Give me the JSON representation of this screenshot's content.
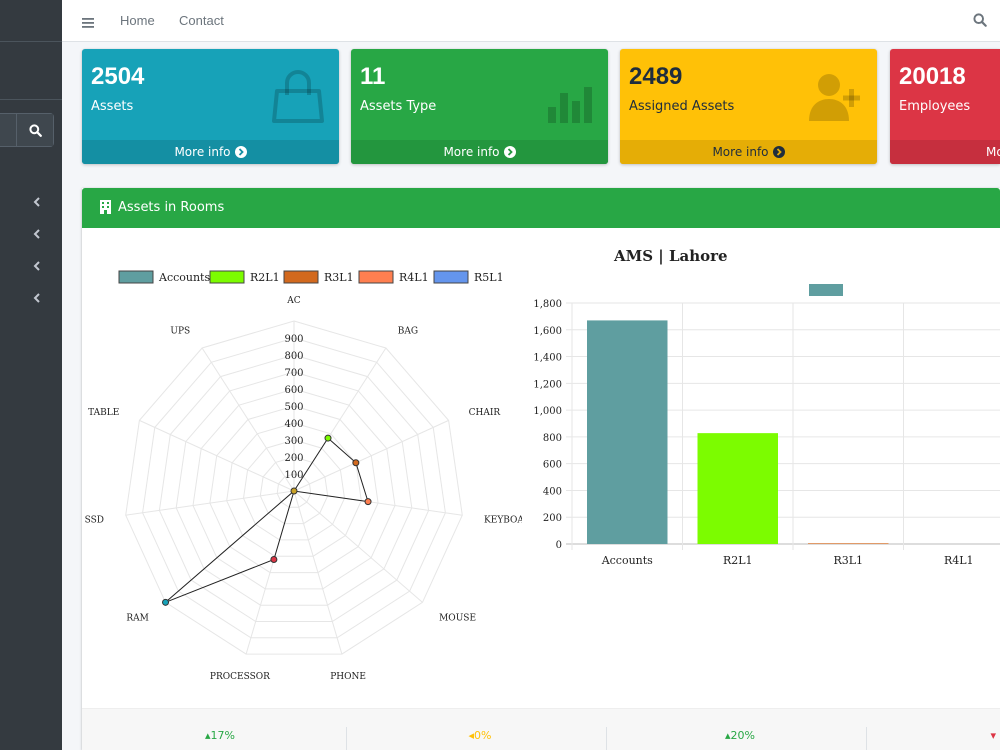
{
  "navbar": {
    "links": [
      "Home",
      "Contact"
    ]
  },
  "boxes": [
    {
      "value": "2504",
      "label": "Assets",
      "footer": "More info",
      "color": "#17a2b8",
      "footer_color": "#148fa3",
      "icon": "shopping-bag-icon"
    },
    {
      "value": "11",
      "label": "Assets Type",
      "footer": "More info",
      "color": "#28a745",
      "footer_color": "#23963e",
      "icon": "bar-chart-icon"
    },
    {
      "value": "2489",
      "label": "Assigned Assets",
      "footer": "More info",
      "color": "#ffc107",
      "footer_color": "#e5ad06",
      "icon": "user-plus-icon"
    },
    {
      "value": "20018",
      "label": "Employees",
      "footer": "Mo",
      "color": "#dc3545",
      "footer_color": "#c62f3e",
      "icon": "users-icon"
    }
  ],
  "card": {
    "title": "Assets in Rooms",
    "header_color": "#28a745",
    "icon": "building-icon"
  },
  "footer_stats": [
    {
      "pct": "17%",
      "direction": "up",
      "color": "#28a745"
    },
    {
      "pct": "0%",
      "direction": "left",
      "color": "#ffc107"
    },
    {
      "pct": "20%",
      "direction": "up",
      "color": "#28a745"
    },
    {
      "pct": "",
      "direction": "down",
      "color": "#dc3545"
    }
  ],
  "chart_data": [
    {
      "type": "radar",
      "legend": [
        {
          "name": "Accounts",
          "color": "#5f9ea0"
        },
        {
          "name": "R2L1",
          "color": "#7cfc00"
        },
        {
          "name": "R3L1",
          "color": "#d2691e"
        },
        {
          "name": "R4L1",
          "color": "#ff7f50"
        },
        {
          "name": "R5L1",
          "color": "#6495ed"
        }
      ],
      "axes": [
        "AC",
        "BAG",
        "CHAIR",
        "KEYBOARD",
        "MOUSE",
        "PHONE",
        "PROCESSOR",
        "RAM",
        "SSD",
        "TABLE",
        "UPS"
      ],
      "ticks": [
        "100",
        "200",
        "300",
        "400",
        "500",
        "600",
        "700",
        "800",
        "900"
      ],
      "rmax": 1000,
      "points": [
        {
          "axis": 0,
          "value": 0
        },
        {
          "axis": 1,
          "value": 370,
          "color": "#7cfc00"
        },
        {
          "axis": 2,
          "value": 400,
          "color": "#d2691e"
        },
        {
          "axis": 3,
          "value": 440,
          "color": "#ff7f50"
        },
        {
          "axis": 4,
          "value": 0
        },
        {
          "axis": 5,
          "value": 0
        },
        {
          "axis": 6,
          "value": 420,
          "color": "#dc3545"
        },
        {
          "axis": 7,
          "value": 1000,
          "color": "#17a2b8"
        },
        {
          "axis": 8,
          "value": 0
        },
        {
          "axis": 9,
          "value": 0
        },
        {
          "axis": 10,
          "value": 0
        }
      ]
    },
    {
      "type": "bar",
      "title": "AMS | Lahore",
      "categories": [
        "Accounts",
        "R2L1",
        "R3L1",
        "R4L1"
      ],
      "values": [
        1670,
        828,
        5,
        0
      ],
      "colors": [
        "#5f9ea0",
        "#7cfc00",
        "#d2691e",
        "#ff7f50"
      ],
      "legend_color": "#5f9ea0",
      "ylim": [
        0,
        1800
      ],
      "yticks": [
        "0",
        "200",
        "400",
        "600",
        "800",
        "1,000",
        "1,200",
        "1,400",
        "1,600",
        "1,800"
      ]
    }
  ]
}
